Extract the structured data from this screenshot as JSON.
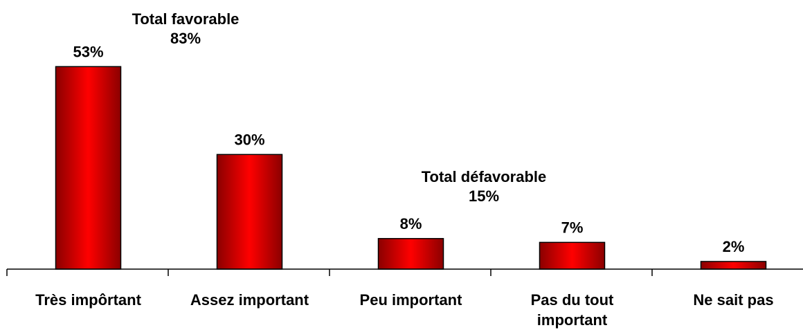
{
  "chart_data": {
    "type": "bar",
    "categories": [
      "Très impôrtant",
      "Assez important",
      "Peu important",
      "Pas du tout important",
      "Ne sait pas"
    ],
    "category_lines": [
      [
        "Très impôrtant"
      ],
      [
        "Assez important"
      ],
      [
        "Peu important"
      ],
      [
        "Pas du tout",
        "important"
      ],
      [
        "Ne sait pas"
      ]
    ],
    "values": [
      53,
      30,
      8,
      7,
      2
    ],
    "value_labels": [
      "53%",
      "30%",
      "8%",
      "7%",
      "2%"
    ],
    "ylim": [
      0,
      65
    ],
    "grid": false,
    "bar_colors": {
      "center": "#ff0000",
      "edge": "#8b0000",
      "outline": "#000000"
    },
    "annotations": [
      {
        "lines": [
          "Total favorable",
          "83%"
        ],
        "spans": [
          0,
          1
        ]
      },
      {
        "lines": [
          "Total défavorable",
          "15%"
        ],
        "spans": [
          2,
          3
        ]
      }
    ]
  }
}
